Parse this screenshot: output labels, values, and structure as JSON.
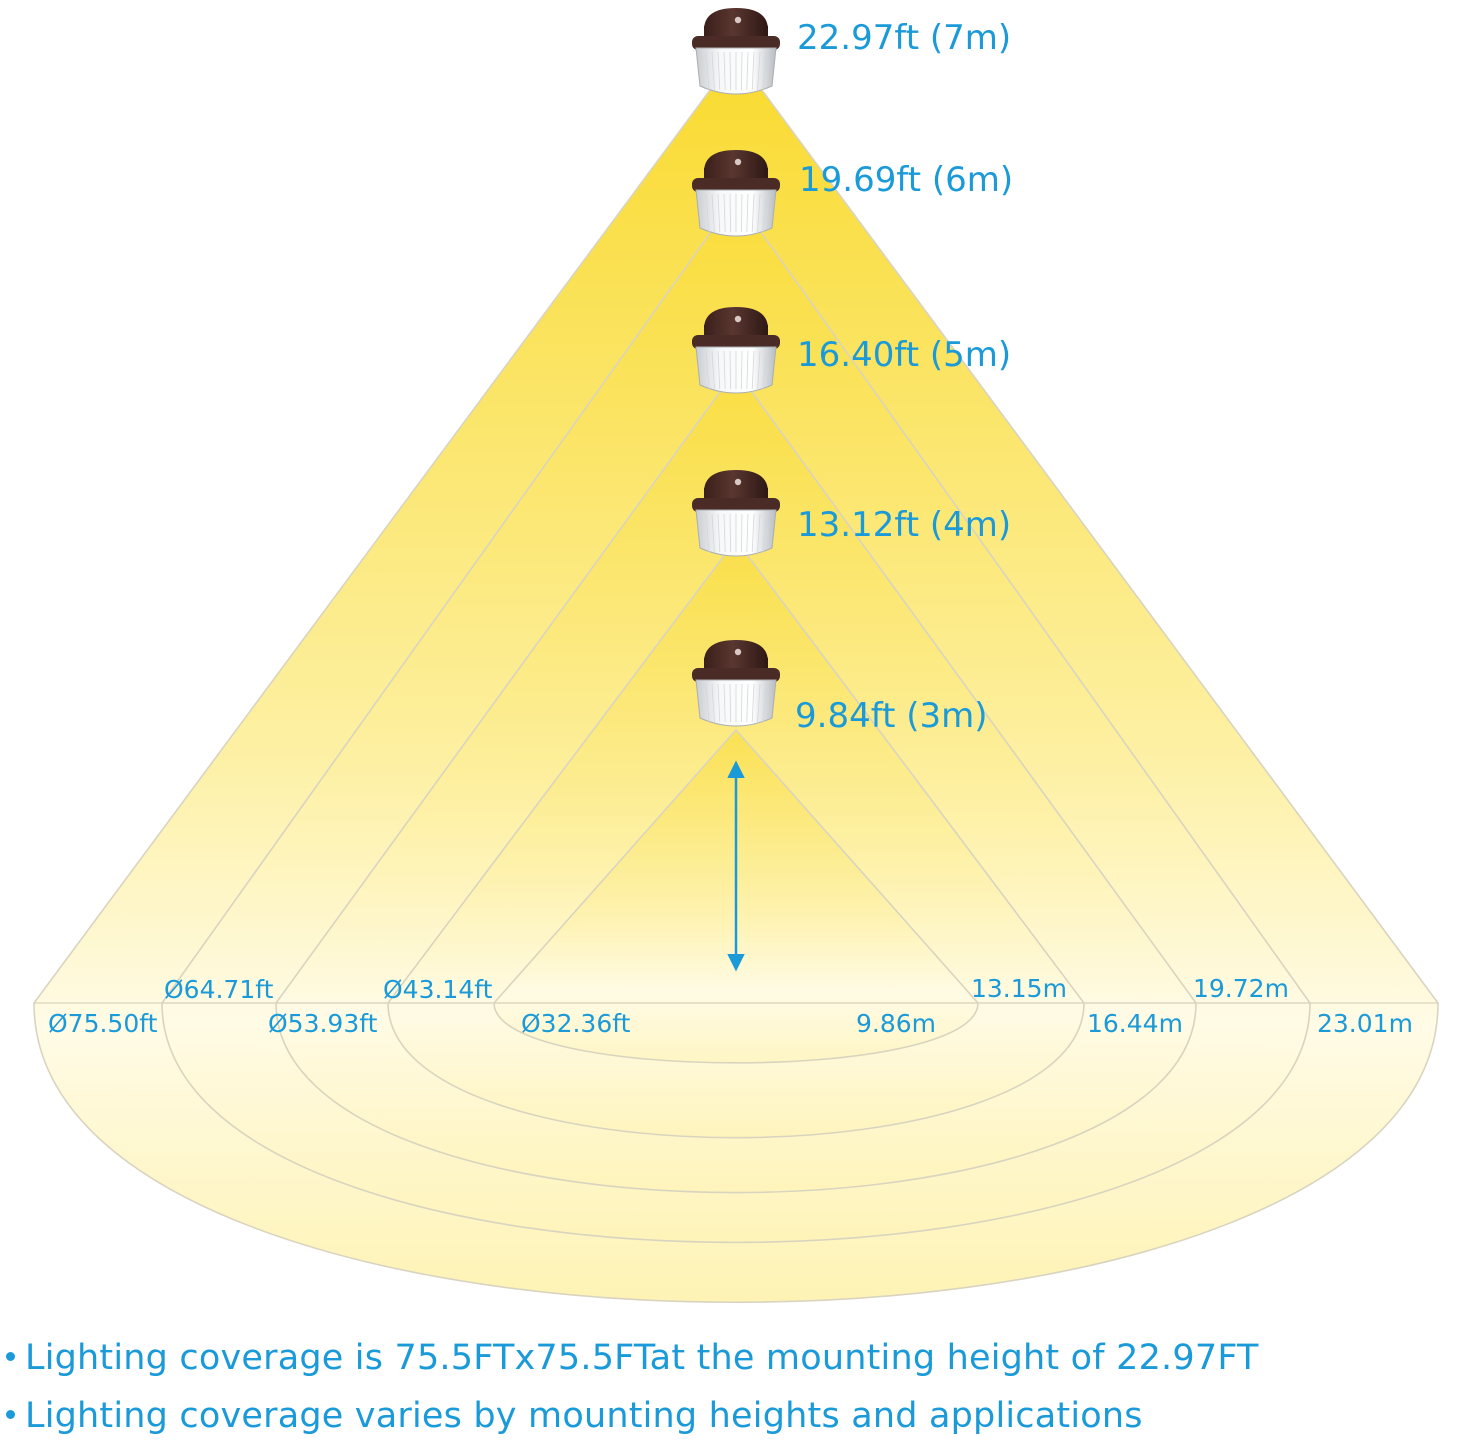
{
  "colors": {
    "accent": "#1a9ad8",
    "light_top": "#f9da2e",
    "light_bottom": "#fffbe2",
    "fixture_housing": "#4b2b25",
    "fixture_lens": "#eef0f1",
    "outline": "#d9d4c0"
  },
  "fixture_icon": "barn-light-fixture-icon",
  "mounting_heights": [
    {
      "label": "22.97ft (7m)"
    },
    {
      "label": "19.69ft (6m)"
    },
    {
      "label": "16.40ft (5m)"
    },
    {
      "label": "13.12ft (4m)"
    },
    {
      "label": "9.84ft (3m)"
    }
  ],
  "coverage_diameters": [
    {
      "ft": "Ø75.50ft",
      "m": "23.01m"
    },
    {
      "ft": "Ø64.71ft",
      "m": "19.72m"
    },
    {
      "ft": "Ø53.93ft",
      "m": "16.44m"
    },
    {
      "ft": "Ø43.14ft",
      "m": "13.15m"
    },
    {
      "ft": "Ø32.36ft",
      "m": "9.86m"
    }
  ],
  "notes": [
    "Lighting coverage is 75.5FTx75.5FTat the mounting height of 22.97FT",
    "Lighting coverage varies by mounting heights and applications"
  ]
}
